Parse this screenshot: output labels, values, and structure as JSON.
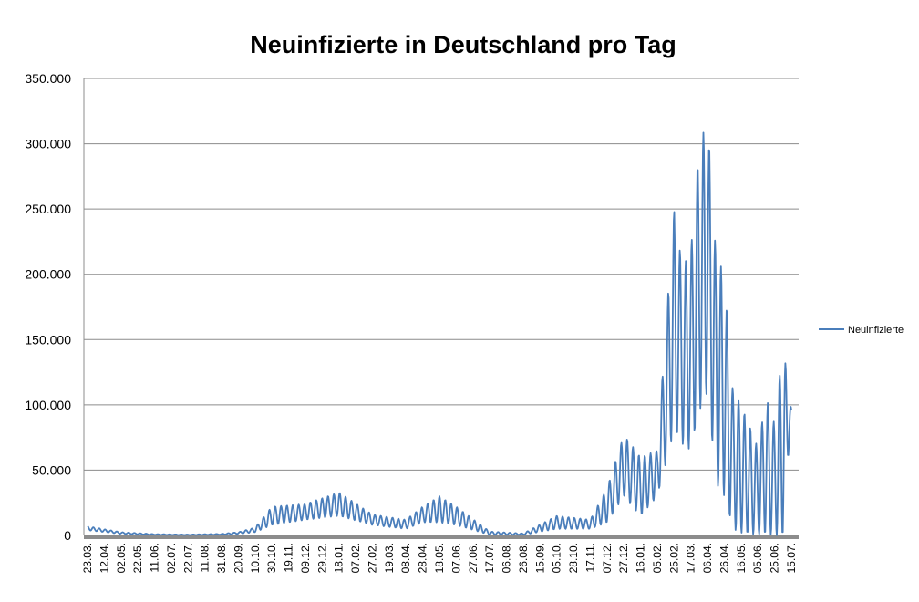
{
  "chart_data": {
    "type": "line",
    "title": "Neuinfizierte in Deutschland pro Tag",
    "xlabel": "",
    "ylabel": "",
    "ylim": [
      0,
      350000
    ],
    "y_ticks": [
      0,
      50000,
      100000,
      150000,
      200000,
      250000,
      300000,
      350000
    ],
    "y_tick_labels": [
      "0",
      "50.000",
      "100.000",
      "150.000",
      "200.000",
      "250.000",
      "300.000",
      "350.000"
    ],
    "x_tick_labels": [
      "23.03.",
      "12.04.",
      "02.05.",
      "22.05.",
      "11.06.",
      "02.07.",
      "22.07.",
      "11.08.",
      "31.08.",
      "20.09.",
      "10.10.",
      "30.10.",
      "19.11.",
      "09.12.",
      "29.12.",
      "18.01.",
      "07.02.",
      "27.02.",
      "19.03.",
      "08.04.",
      "28.04.",
      "18.05.",
      "07.06.",
      "27.06.",
      "17.07.",
      "06.08.",
      "26.08.",
      "15.09.",
      "05.10.",
      "28.10.",
      "17.11.",
      "07.12.",
      "27.12.",
      "16.01.",
      "05.02.",
      "25.02.",
      "17.03.",
      "06.04.",
      "26.04.",
      "16.05.",
      "05.06.",
      "25.06.",
      "15.07."
    ],
    "grid": true,
    "legend_position": "right",
    "series": [
      {
        "name": "Neuinfizierte",
        "color": "#4a7ebb",
        "envelope": {
          "x": [
            0,
            2,
            4,
            6,
            8,
            9,
            10,
            11,
            13,
            15,
            17,
            19,
            20,
            21,
            22,
            24,
            26,
            28,
            30,
            31,
            32,
            33,
            34,
            35,
            35.5,
            36,
            36.5,
            37,
            37.5,
            38,
            38.5,
            39,
            39.5,
            40,
            40.5,
            41,
            41.5,
            42
          ],
          "high": [
            7000,
            2500,
            1000,
            700,
            1200,
            2500,
            6000,
            22000,
            24000,
            33000,
            16000,
            12000,
            22000,
            30000,
            22000,
            3000,
            1500,
            15000,
            12000,
            36000,
            77000,
            60000,
            65000,
            250000,
            205000,
            218000,
            299000,
            318000,
            215000,
            200000,
            112000,
            100000,
            84000,
            67000,
            106000,
            85000,
            147000,
            96000
          ],
          "low": [
            4000,
            1200,
            500,
            300,
            600,
            1200,
            2500,
            8000,
            12000,
            15000,
            8000,
            5000,
            10000,
            10000,
            8000,
            500,
            500,
            5000,
            5000,
            10000,
            30000,
            15000,
            30000,
            80000,
            70000,
            65000,
            95000,
            110000,
            40000,
            30000,
            5000,
            2000,
            1000,
            1000,
            1000,
            0,
            0,
            96000
          ]
        },
        "oscillation_period_ticks": 0.35
      }
    ]
  }
}
